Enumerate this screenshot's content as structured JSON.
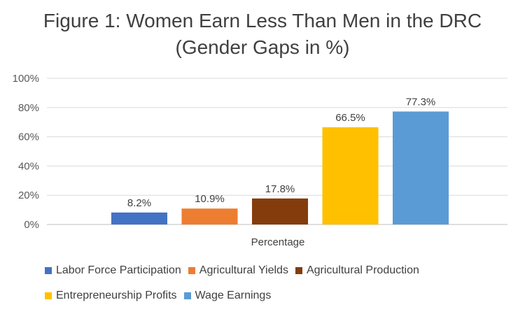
{
  "chart_data": {
    "type": "bar",
    "title": "Figure 1: Women Earn Less Than Men in the DRC",
    "subtitle": "(Gender Gaps in %)",
    "xlabel": "Percentage",
    "ylabel": "",
    "ylim": [
      0,
      100
    ],
    "yticks": [
      "0%",
      "20%",
      "40%",
      "60%",
      "80%",
      "100%"
    ],
    "ytick_values": [
      0,
      20,
      40,
      60,
      80,
      100
    ],
    "categories": [
      "Percentage"
    ],
    "series": [
      {
        "name": "Labor Force Participation",
        "value": 8.2,
        "label": "8.2%",
        "color": "#4472C4"
      },
      {
        "name": "Agricultural Yields",
        "value": 10.9,
        "label": "10.9%",
        "color": "#ED7D31"
      },
      {
        "name": "Agricultural Production",
        "value": 17.8,
        "label": "17.8%",
        "color": "#843C0C"
      },
      {
        "name": "Entrepreneurship Profits",
        "value": 66.5,
        "label": "66.5%",
        "color": "#FFC000"
      },
      {
        "name": "Wage Earnings",
        "value": 77.3,
        "label": "77.3%",
        "color": "#5B9BD5"
      }
    ],
    "grid": true,
    "legend_position": "bottom"
  }
}
